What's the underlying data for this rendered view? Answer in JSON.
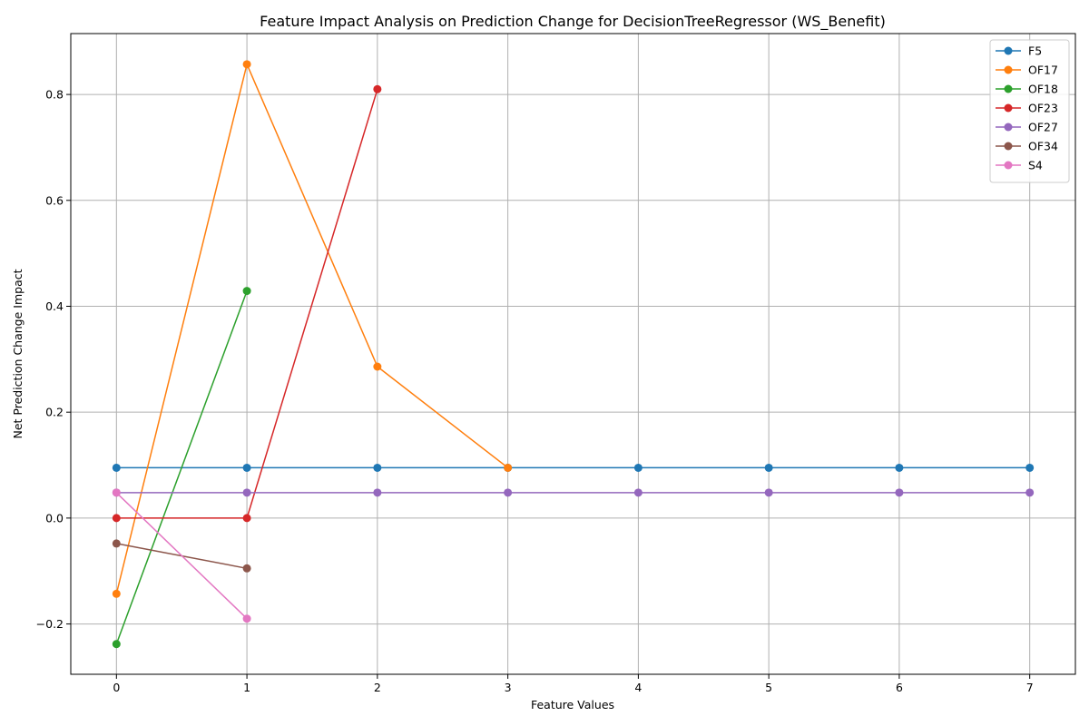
{
  "chart_data": {
    "type": "line",
    "title": "Feature Impact Analysis on Prediction Change for DecisionTreeRegressor (WS_Benefit)",
    "xlabel": "Feature Values",
    "ylabel": "Net Prediction Change Impact",
    "xlim": [
      -0.35,
      7.35
    ],
    "ylim": [
      -0.295,
      0.915
    ],
    "xticks": [
      0,
      1,
      2,
      3,
      4,
      5,
      6,
      7
    ],
    "xtick_labels": [
      "0",
      "1",
      "2",
      "3",
      "4",
      "5",
      "6",
      "7"
    ],
    "yticks": [
      -0.2,
      0.0,
      0.2,
      0.4,
      0.6,
      0.8
    ],
    "ytick_labels": [
      "−0.2",
      "0.0",
      "0.2",
      "0.4",
      "0.6",
      "0.8"
    ],
    "grid": true,
    "legend_position": "top-right",
    "series": [
      {
        "name": "F5",
        "color": "#1f77b4",
        "x": [
          0,
          1,
          2,
          3,
          4,
          5,
          6,
          7
        ],
        "y": [
          0.095,
          0.095,
          0.095,
          0.095,
          0.095,
          0.095,
          0.095,
          0.095
        ]
      },
      {
        "name": "OF17",
        "color": "#ff7f0e",
        "x": [
          0,
          1,
          2,
          3
        ],
        "y": [
          -0.143,
          0.857,
          0.286,
          0.095
        ]
      },
      {
        "name": "OF18",
        "color": "#2ca02c",
        "x": [
          0,
          1
        ],
        "y": [
          -0.238,
          0.429
        ]
      },
      {
        "name": "OF23",
        "color": "#d62728",
        "x": [
          0,
          1,
          2
        ],
        "y": [
          0.0,
          0.0,
          0.81
        ]
      },
      {
        "name": "OF27",
        "color": "#9467bd",
        "x": [
          0,
          1,
          2,
          3,
          4,
          5,
          6,
          7
        ],
        "y": [
          0.048,
          0.048,
          0.048,
          0.048,
          0.048,
          0.048,
          0.048,
          0.048
        ]
      },
      {
        "name": "OF34",
        "color": "#8c564b",
        "x": [
          0,
          1
        ],
        "y": [
          -0.048,
          -0.095
        ]
      },
      {
        "name": "S4",
        "color": "#e377c2",
        "x": [
          0,
          1
        ],
        "y": [
          0.048,
          -0.19
        ]
      }
    ]
  }
}
